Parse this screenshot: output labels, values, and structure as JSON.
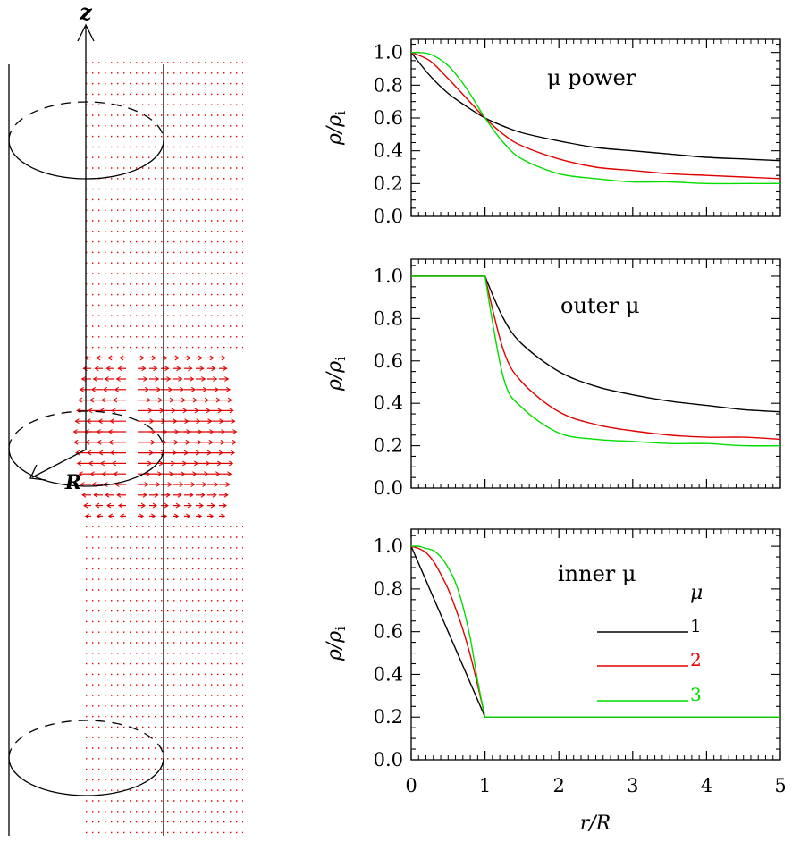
{
  "schematic": {
    "z_label": "z",
    "r_label": "R",
    "flow_color": "#e00000"
  },
  "colors": {
    "mu1": "#000000",
    "mu2": "#e00000",
    "mu3": "#00dd00"
  },
  "chart_data": [
    {
      "type": "line",
      "title": "μ power",
      "xlabel": "r/R",
      "ylabel": "ρ/ρi",
      "xlim": [
        0,
        5
      ],
      "ylim": [
        0,
        1.08
      ],
      "yticks": [
        "0.0",
        "0.2",
        "0.4",
        "0.6",
        "0.8",
        "1.0"
      ],
      "xticks": [
        "0",
        "1",
        "2",
        "3",
        "4",
        "5"
      ],
      "x": [
        0,
        0.25,
        0.5,
        0.75,
        1,
        1.25,
        1.5,
        2,
        2.5,
        3,
        3.5,
        4,
        4.5,
        5
      ],
      "series": [
        {
          "name": "1",
          "color": "#000000",
          "values": [
            1.0,
            0.86,
            0.75,
            0.67,
            0.6,
            0.55,
            0.51,
            0.46,
            0.42,
            0.4,
            0.38,
            0.36,
            0.35,
            0.34
          ]
        },
        {
          "name": "2",
          "color": "#e00000",
          "values": [
            1.0,
            0.95,
            0.84,
            0.72,
            0.6,
            0.5,
            0.43,
            0.35,
            0.3,
            0.28,
            0.26,
            0.25,
            0.24,
            0.23
          ]
        },
        {
          "name": "3",
          "color": "#00dd00",
          "values": [
            1.0,
            0.99,
            0.92,
            0.78,
            0.6,
            0.45,
            0.35,
            0.26,
            0.23,
            0.21,
            0.21,
            0.2,
            0.2,
            0.2
          ]
        }
      ]
    },
    {
      "type": "line",
      "title": "outer μ",
      "xlabel": "r/R",
      "ylabel": "ρ/ρi",
      "xlim": [
        0,
        5
      ],
      "ylim": [
        0,
        1.08
      ],
      "yticks": [
        "0.0",
        "0.2",
        "0.4",
        "0.6",
        "0.8",
        "1.0"
      ],
      "xticks": [
        "0",
        "1",
        "2",
        "3",
        "4",
        "5"
      ],
      "x": [
        0,
        0.5,
        1,
        1.25,
        1.5,
        2,
        2.5,
        3,
        3.5,
        4,
        4.5,
        5
      ],
      "series": [
        {
          "name": "1",
          "color": "#000000",
          "values": [
            1.0,
            1.0,
            1.0,
            0.8,
            0.68,
            0.55,
            0.48,
            0.44,
            0.41,
            0.39,
            0.37,
            0.36
          ]
        },
        {
          "name": "2",
          "color": "#e00000",
          "values": [
            1.0,
            1.0,
            1.0,
            0.65,
            0.5,
            0.36,
            0.3,
            0.27,
            0.25,
            0.24,
            0.24,
            0.23
          ]
        },
        {
          "name": "3",
          "color": "#00dd00",
          "values": [
            1.0,
            1.0,
            1.0,
            0.52,
            0.38,
            0.26,
            0.23,
            0.22,
            0.21,
            0.21,
            0.2,
            0.2
          ]
        }
      ]
    },
    {
      "type": "line",
      "title": "inner μ",
      "xlabel": "r/R",
      "ylabel": "ρ/ρi",
      "xlim": [
        0,
        5
      ],
      "ylim": [
        0,
        1.08
      ],
      "yticks": [
        "0.0",
        "0.2",
        "0.4",
        "0.6",
        "0.8",
        "1.0"
      ],
      "xticks": [
        "0",
        "1",
        "2",
        "3",
        "4",
        "5"
      ],
      "legend_title": "μ",
      "legend_position": "right",
      "x": [
        0,
        0.1,
        0.2,
        0.3,
        0.4,
        0.5,
        0.6,
        0.7,
        0.8,
        0.9,
        1,
        2,
        3,
        4,
        5
      ],
      "series": [
        {
          "name": "1",
          "color": "#000000",
          "values": [
            1.0,
            0.92,
            0.84,
            0.76,
            0.68,
            0.6,
            0.52,
            0.44,
            0.36,
            0.28,
            0.2,
            0.2,
            0.2,
            0.2,
            0.2
          ]
        },
        {
          "name": "2",
          "color": "#e00000",
          "values": [
            1.0,
            0.99,
            0.97,
            0.93,
            0.87,
            0.8,
            0.71,
            0.61,
            0.49,
            0.35,
            0.2,
            0.2,
            0.2,
            0.2,
            0.2
          ]
        },
        {
          "name": "3",
          "color": "#00dd00",
          "values": [
            1.0,
            1.0,
            0.99,
            0.98,
            0.95,
            0.9,
            0.83,
            0.72,
            0.57,
            0.37,
            0.2,
            0.2,
            0.2,
            0.2,
            0.2
          ]
        }
      ]
    }
  ]
}
